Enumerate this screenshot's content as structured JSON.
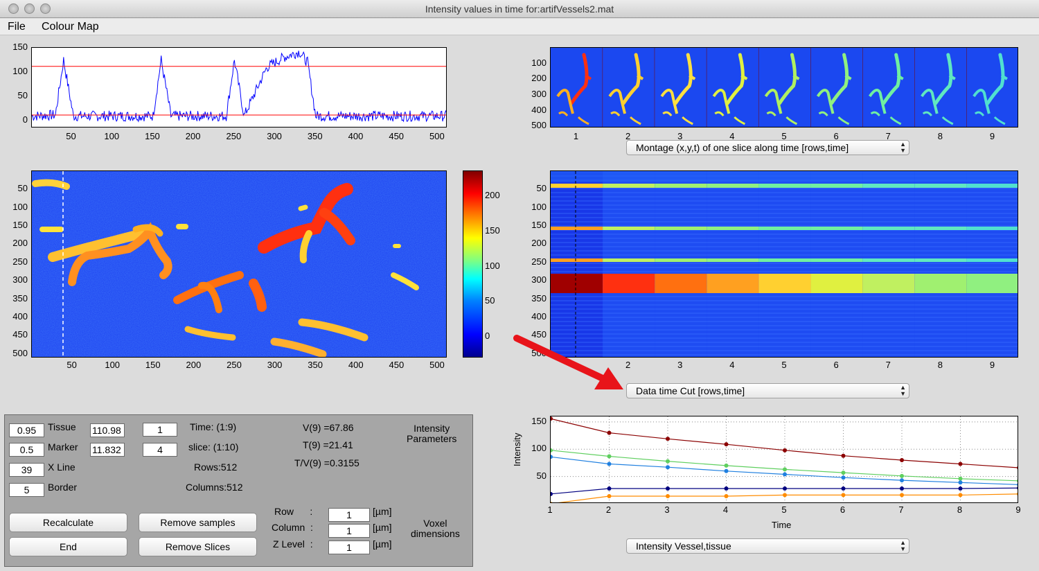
{
  "window": {
    "title": "Intensity values in time for:artifVessels2.mat"
  },
  "menu": [
    "File",
    "Colour Map"
  ],
  "profile_plot": {
    "yticks": [
      "150",
      "100",
      "50",
      "0"
    ],
    "xticks": [
      "50",
      "100",
      "150",
      "200",
      "250",
      "300",
      "350",
      "400",
      "450",
      "500"
    ]
  },
  "image_plot": {
    "yticks": [
      "50",
      "100",
      "150",
      "200",
      "250",
      "300",
      "350",
      "400",
      "450",
      "500"
    ],
    "xticks": [
      "50",
      "100",
      "150",
      "200",
      "250",
      "300",
      "350",
      "400",
      "450",
      "500"
    ]
  },
  "colorbar": {
    "ticks": [
      "200",
      "150",
      "100",
      "50",
      "0"
    ]
  },
  "montage": {
    "yticks": [
      "100",
      "200",
      "300",
      "400",
      "500"
    ],
    "xticks": [
      "1",
      "2",
      "3",
      "4",
      "5",
      "6",
      "7",
      "8",
      "9"
    ],
    "selector": "Montage (x,y,t) of one slice along time [rows,time]"
  },
  "timecut": {
    "yticks": [
      "50",
      "100",
      "150",
      "200",
      "250",
      "300",
      "350",
      "400",
      "450",
      "500"
    ],
    "xticks": [
      "2",
      "3",
      "4",
      "5",
      "6",
      "7",
      "8",
      "9"
    ],
    "selector": "Data time Cut [rows,time]"
  },
  "intensity_plot": {
    "ylabel": "Intensity",
    "xlabel": "Time",
    "yticks": [
      "150",
      "100",
      "50"
    ],
    "xticks": [
      "1",
      "2",
      "3",
      "4",
      "5",
      "6",
      "7",
      "8",
      "9"
    ],
    "selector": "Intensity Vessel,tissue"
  },
  "controls": {
    "tissue_value": "0.95",
    "tissue_label": "Tissue",
    "tissue_level": "110.98",
    "marker_value": "0.5",
    "marker_label": "Marker",
    "marker_level": "11.832",
    "xline_value": "39",
    "xline_label": "X Line",
    "border_value": "5",
    "border_label": "Border",
    "time_value": "1",
    "time_label": "Time:  (1:9)",
    "slice_value": "4",
    "slice_label": "slice: (1:10)",
    "rows_label": "Rows:512",
    "columns_label": "Columns:512",
    "v_label": "V(9) =67.86",
    "t_label": "T(9) =21.41",
    "tv_label": "T/V(9) =0.3155",
    "intensity_params": "Intensity\nParameters",
    "recalc": "Recalculate",
    "end": "End",
    "remove_samples": "Remove samples",
    "remove_slices": "Remove Slices",
    "row_label": "Row      :",
    "row_value": "1",
    "column_label": "Column  :",
    "column_value": "1",
    "zlevel_label": "Z Level  :",
    "zlevel_value": "1",
    "unit": "[µm]",
    "voxel": "Voxel\ndimensions"
  },
  "chart_data": [
    {
      "type": "line",
      "xlim": [
        1,
        512
      ],
      "ylim": [
        -15,
        150
      ],
      "series": [
        {
          "values_at": [
            1,
            30,
            40,
            52,
            150,
            160,
            172,
            240,
            250,
            262,
            290,
            310,
            330,
            340,
            350,
            512
          ],
          "values": [
            10,
            12,
            125,
            10,
            10,
            125,
            10,
            10,
            125,
            10,
            110,
            130,
            142,
            120,
            10,
            10
          ]
        }
      ],
      "hlines": [
        112,
        12
      ]
    },
    {
      "type": "line",
      "x": [
        1,
        2,
        3,
        4,
        5,
        6,
        7,
        8,
        9
      ],
      "xlabel": "Time",
      "ylabel": "Intensity",
      "xlim": [
        1,
        9
      ],
      "ylim": [
        0,
        160
      ],
      "series": [
        {
          "color": "#8b0000",
          "values": [
            156,
            130,
            119,
            109,
            98,
            88,
            80,
            73,
            66
          ]
        },
        {
          "color": "#5fcf5f",
          "values": [
            98,
            87,
            78,
            70,
            63,
            57,
            51,
            46,
            42
          ]
        },
        {
          "color": "#2080e0",
          "values": [
            86,
            73,
            67,
            60,
            54,
            48,
            43,
            39,
            35
          ]
        },
        {
          "color": "#000080",
          "values": [
            18,
            28,
            28,
            28,
            28,
            28,
            28,
            28,
            29
          ]
        },
        {
          "color": "#ff8c00",
          "values": [
            0,
            14,
            14,
            14,
            16,
            16,
            16,
            16,
            18
          ]
        }
      ]
    }
  ]
}
